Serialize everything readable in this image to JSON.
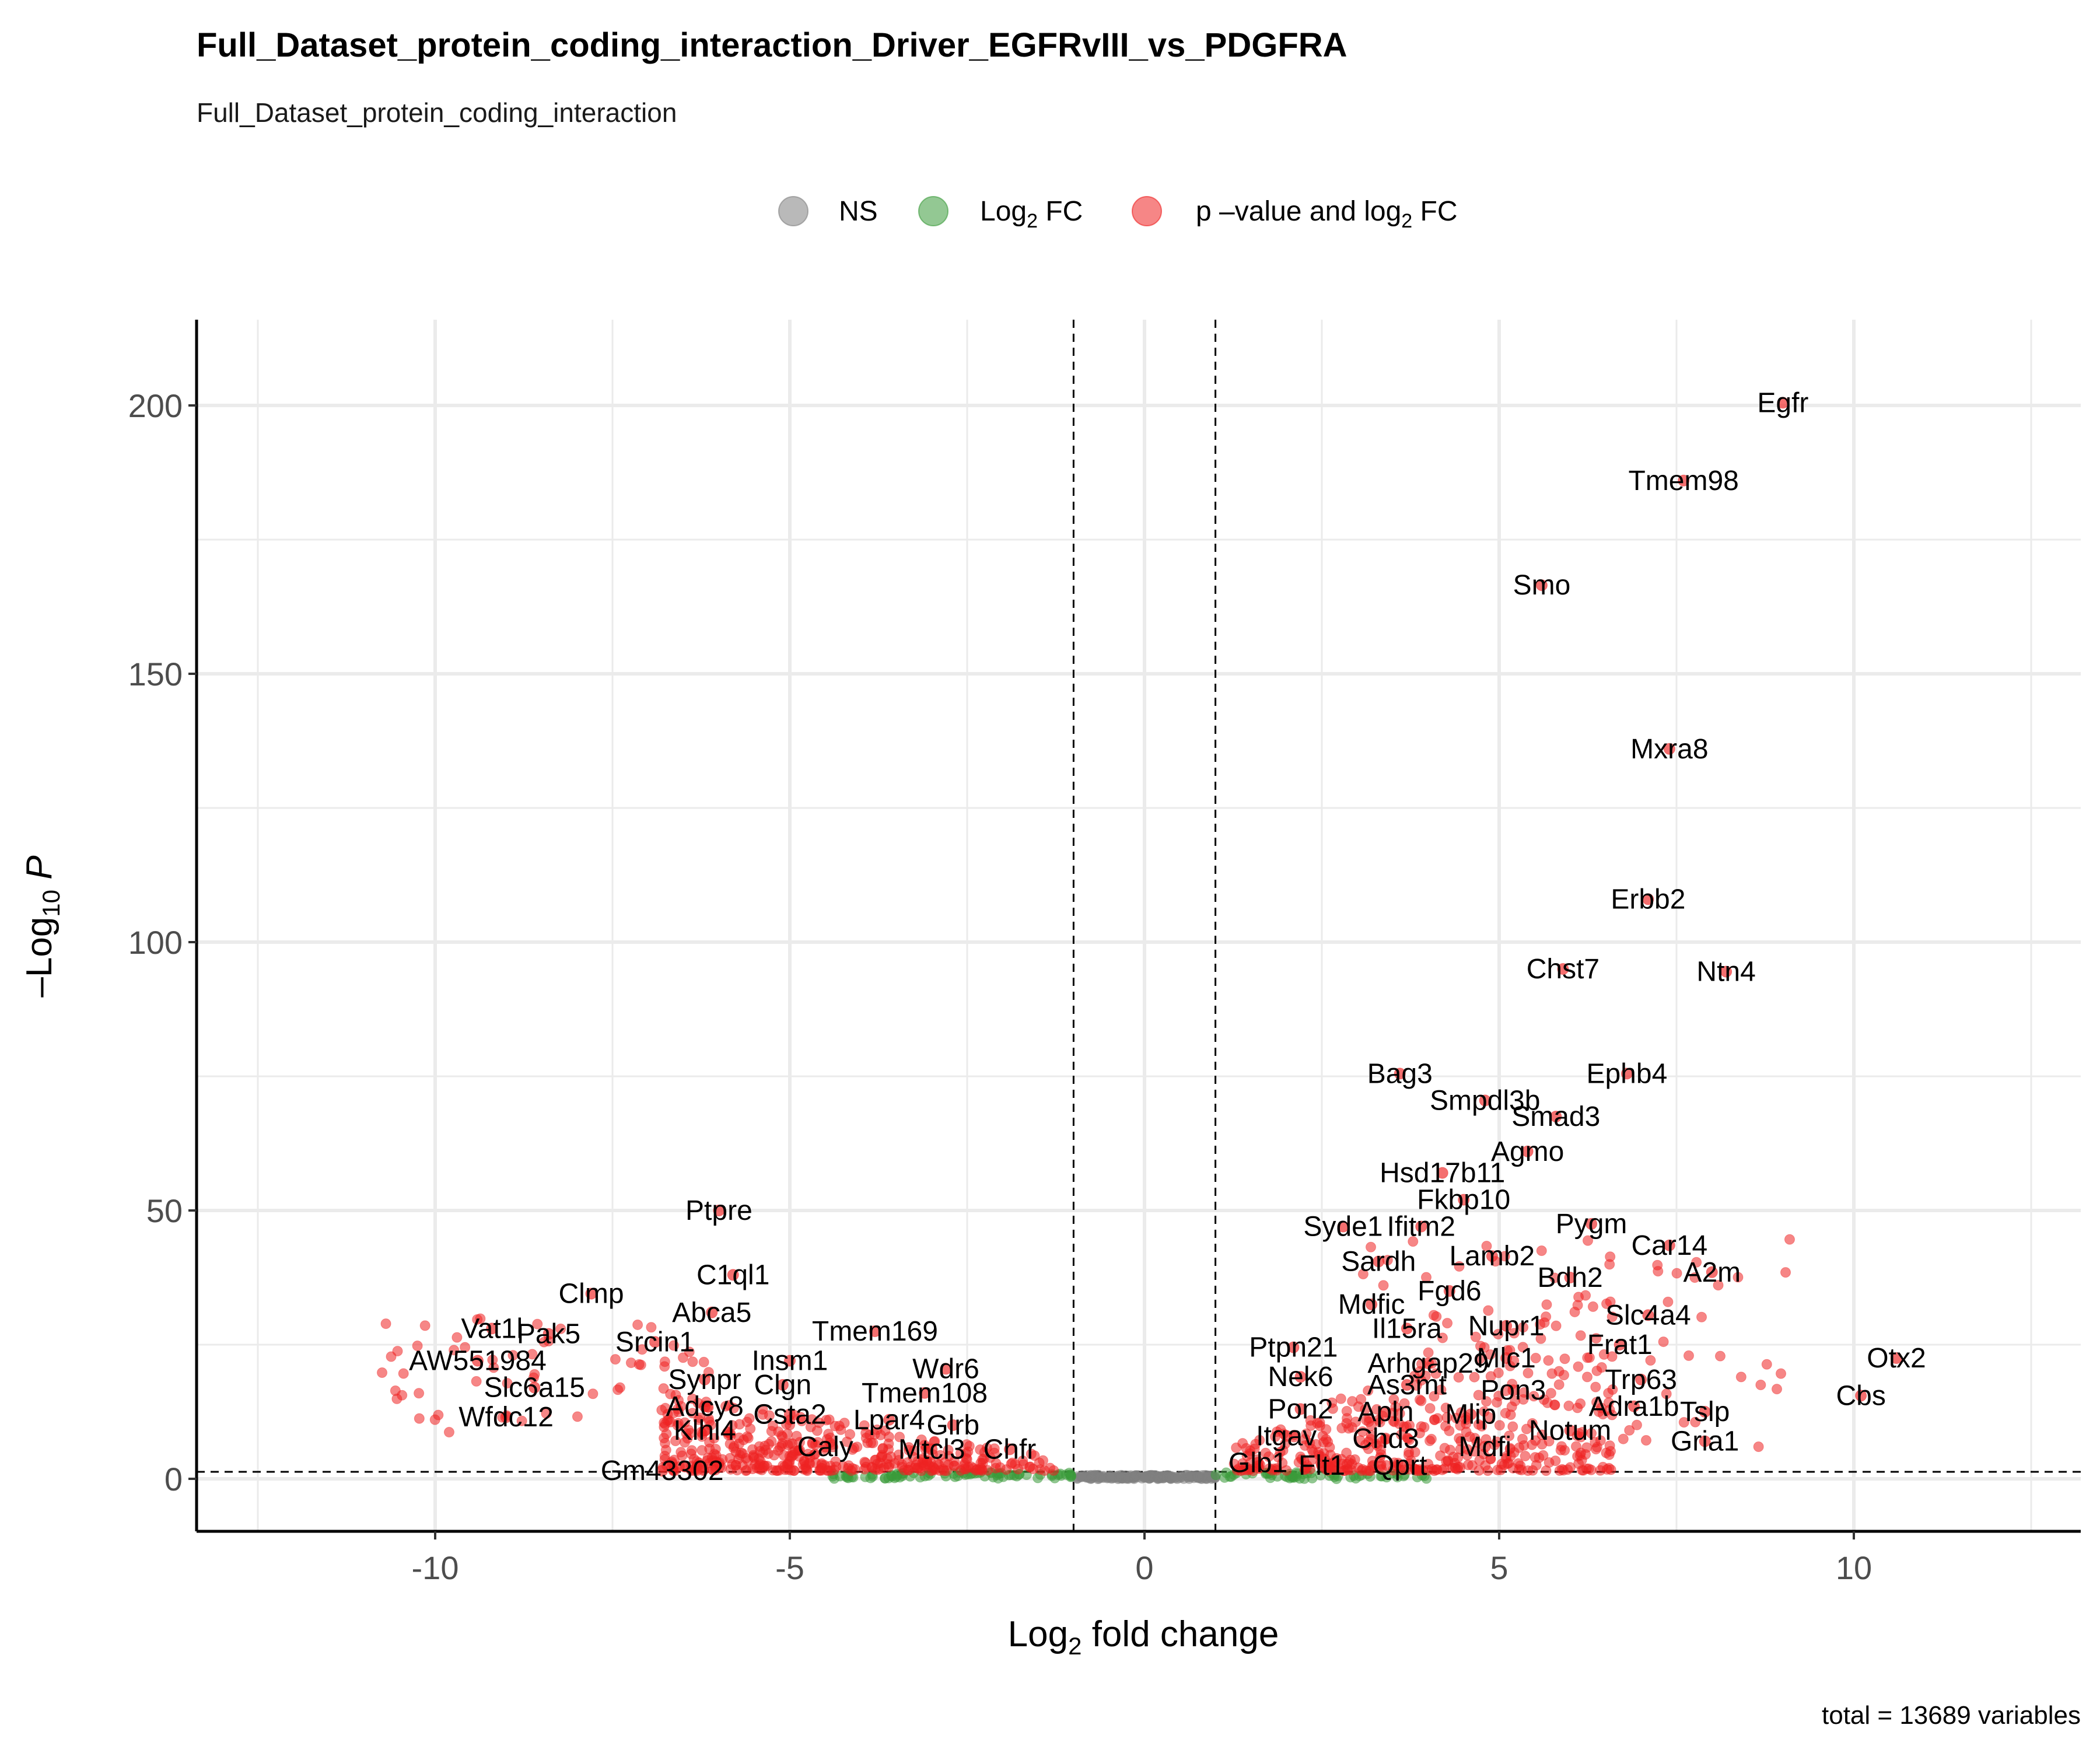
{
  "chart_data": {
    "type": "scatter",
    "title": "Full_Dataset_protein_coding_interaction_Driver_EGFRvIII_vs_PDGFRA",
    "subtitle": "Full_Dataset_protein_coding_interaction",
    "xlabel": {
      "base": "Log",
      "sub": "2",
      "rest": " fold change"
    },
    "ylabel": {
      "pre": "–Log",
      "sub": "10",
      "post": " P"
    },
    "caption": "total = 13689 variables",
    "xlim": [
      -13.4,
      13.4
    ],
    "ylim": [
      -10,
      216
    ],
    "x_ticks": [
      -10,
      -5,
      0,
      5,
      10
    ],
    "y_ticks": [
      0,
      50,
      100,
      150,
      200
    ],
    "fc_cutoff": 1,
    "p_cutoff_neglog10": 1.3,
    "grid": true,
    "legend_position": "top",
    "colors": {
      "NS": "#808080",
      "FC": "#3a9b3a",
      "P_FC": "#ee2222"
    },
    "legend": [
      {
        "key": "NS",
        "label": "NS",
        "color": "#808080"
      },
      {
        "key": "FC",
        "label": "Log",
        "sub": "2",
        "rest": " FC",
        "color": "#3a9b3a"
      },
      {
        "key": "P_FC",
        "label": "p –value and log",
        "sub": "2",
        "rest": " FC",
        "color": "#ee2222"
      }
    ],
    "labeled_points": [
      {
        "gene": "Egfr",
        "x": 9.0,
        "y": 200.5
      },
      {
        "gene": "Tmem98",
        "x": 7.6,
        "y": 186
      },
      {
        "gene": "Smo",
        "x": 5.6,
        "y": 166.5
      },
      {
        "gene": "Mxra8",
        "x": 7.4,
        "y": 136
      },
      {
        "gene": "Erbb2",
        "x": 7.1,
        "y": 108
      },
      {
        "gene": "Chst7",
        "x": 5.9,
        "y": 95
      },
      {
        "gene": "Ntn4",
        "x": 8.2,
        "y": 94.5
      },
      {
        "gene": "Bag3",
        "x": 3.6,
        "y": 75.5
      },
      {
        "gene": "Ephb4",
        "x": 6.8,
        "y": 75.5
      },
      {
        "gene": "Smpdl3b",
        "x": 4.8,
        "y": 70.5
      },
      {
        "gene": "Smad3",
        "x": 5.8,
        "y": 67.5
      },
      {
        "gene": "Agmo",
        "x": 5.4,
        "y": 61
      },
      {
        "gene": "Hsd17b11",
        "x": 4.2,
        "y": 57
      },
      {
        "gene": "Fkbp10",
        "x": 4.5,
        "y": 52
      },
      {
        "gene": "Pygm",
        "x": 6.3,
        "y": 47.5
      },
      {
        "gene": "Syde1",
        "x": 2.8,
        "y": 47
      },
      {
        "gene": "Ifitm2",
        "x": 3.9,
        "y": 47
      },
      {
        "gene": "Car14",
        "x": 7.4,
        "y": 43.5
      },
      {
        "gene": "Lamb2",
        "x": 4.9,
        "y": 41.5
      },
      {
        "gene": "Sardh",
        "x": 3.3,
        "y": 40.5
      },
      {
        "gene": "A2m",
        "x": 8.0,
        "y": 38.5
      },
      {
        "gene": "Bdh2",
        "x": 6.0,
        "y": 37.5
      },
      {
        "gene": "Fgd6",
        "x": 4.3,
        "y": 35
      },
      {
        "gene": "Mdfic",
        "x": 3.2,
        "y": 32.5
      },
      {
        "gene": "Slc4a4",
        "x": 7.1,
        "y": 30.5
      },
      {
        "gene": "Il15ra",
        "x": 3.7,
        "y": 28
      },
      {
        "gene": "Nupr1",
        "x": 5.1,
        "y": 28.5
      },
      {
        "gene": "Frat1",
        "x": 6.7,
        "y": 25
      },
      {
        "gene": "Ptpn21",
        "x": 2.1,
        "y": 24.5
      },
      {
        "gene": "Arhgap29",
        "x": 4.0,
        "y": 21.5
      },
      {
        "gene": "Mlc1",
        "x": 5.1,
        "y": 22.5
      },
      {
        "gene": "Otx2",
        "x": 10.6,
        "y": 22.5
      },
      {
        "gene": "Nek6",
        "x": 2.2,
        "y": 19
      },
      {
        "gene": "As3mt",
        "x": 3.7,
        "y": 17.5
      },
      {
        "gene": "Trp63",
        "x": 7.0,
        "y": 18.5
      },
      {
        "gene": "Pon3",
        "x": 5.2,
        "y": 16.5
      },
      {
        "gene": "Cbs",
        "x": 10.1,
        "y": 15.5
      },
      {
        "gene": "Adra1b",
        "x": 6.9,
        "y": 13.5
      },
      {
        "gene": "Tslp",
        "x": 7.9,
        "y": 12.5
      },
      {
        "gene": "Pon2",
        "x": 2.2,
        "y": 13
      },
      {
        "gene": "Apln",
        "x": 3.4,
        "y": 12.5
      },
      {
        "gene": "Mlip",
        "x": 4.6,
        "y": 12
      },
      {
        "gene": "Notum",
        "x": 6.0,
        "y": 9
      },
      {
        "gene": "Itgav",
        "x": 2.0,
        "y": 8
      },
      {
        "gene": "Chd3",
        "x": 3.4,
        "y": 7.5
      },
      {
        "gene": "Mdfi",
        "x": 4.8,
        "y": 6
      },
      {
        "gene": "Gria1",
        "x": 7.9,
        "y": 7
      },
      {
        "gene": "Glb1",
        "x": 1.6,
        "y": 3
      },
      {
        "gene": "Flt1",
        "x": 2.5,
        "y": 2.5
      },
      {
        "gene": "Qprt",
        "x": 3.6,
        "y": 2.5
      },
      {
        "gene": "Ptpre",
        "x": -6.0,
        "y": 50
      },
      {
        "gene": "C1ql1",
        "x": -5.8,
        "y": 38
      },
      {
        "gene": "Clmp",
        "x": -7.8,
        "y": 34.5
      },
      {
        "gene": "Abca5",
        "x": -6.1,
        "y": 31
      },
      {
        "gene": "Vat1l",
        "x": -9.2,
        "y": 28
      },
      {
        "gene": "Tmem169",
        "x": -3.8,
        "y": 27.5
      },
      {
        "gene": "Pak5",
        "x": -8.4,
        "y": 27
      },
      {
        "gene": "Srcin1",
        "x": -6.9,
        "y": 25.5
      },
      {
        "gene": "Insm1",
        "x": -5.0,
        "y": 22
      },
      {
        "gene": "AW551984",
        "x": -9.4,
        "y": 22
      },
      {
        "gene": "Wdr6",
        "x": -2.8,
        "y": 20.5
      },
      {
        "gene": "Synpr",
        "x": -6.2,
        "y": 18.5
      },
      {
        "gene": "Slc6a15",
        "x": -8.6,
        "y": 17
      },
      {
        "gene": "Clgn",
        "x": -5.1,
        "y": 17.5
      },
      {
        "gene": "Tmem108",
        "x": -3.1,
        "y": 16
      },
      {
        "gene": "Adcy8",
        "x": -6.2,
        "y": 13.5
      },
      {
        "gene": "Csta2",
        "x": -5.0,
        "y": 12
      },
      {
        "gene": "Lpar4",
        "x": -3.6,
        "y": 11
      },
      {
        "gene": "Wfdc12",
        "x": -9.0,
        "y": 11.5
      },
      {
        "gene": "Klhl4",
        "x": -6.2,
        "y": 9
      },
      {
        "gene": "Glrb",
        "x": -2.7,
        "y": 10
      },
      {
        "gene": "Caly",
        "x": -4.5,
        "y": 6
      },
      {
        "gene": "Mtcl3",
        "x": -3.0,
        "y": 5.5
      },
      {
        "gene": "Chfr",
        "x": -1.9,
        "y": 5.5
      },
      {
        "gene": "Gm43302",
        "x": -6.8,
        "y": 1.5
      }
    ]
  }
}
